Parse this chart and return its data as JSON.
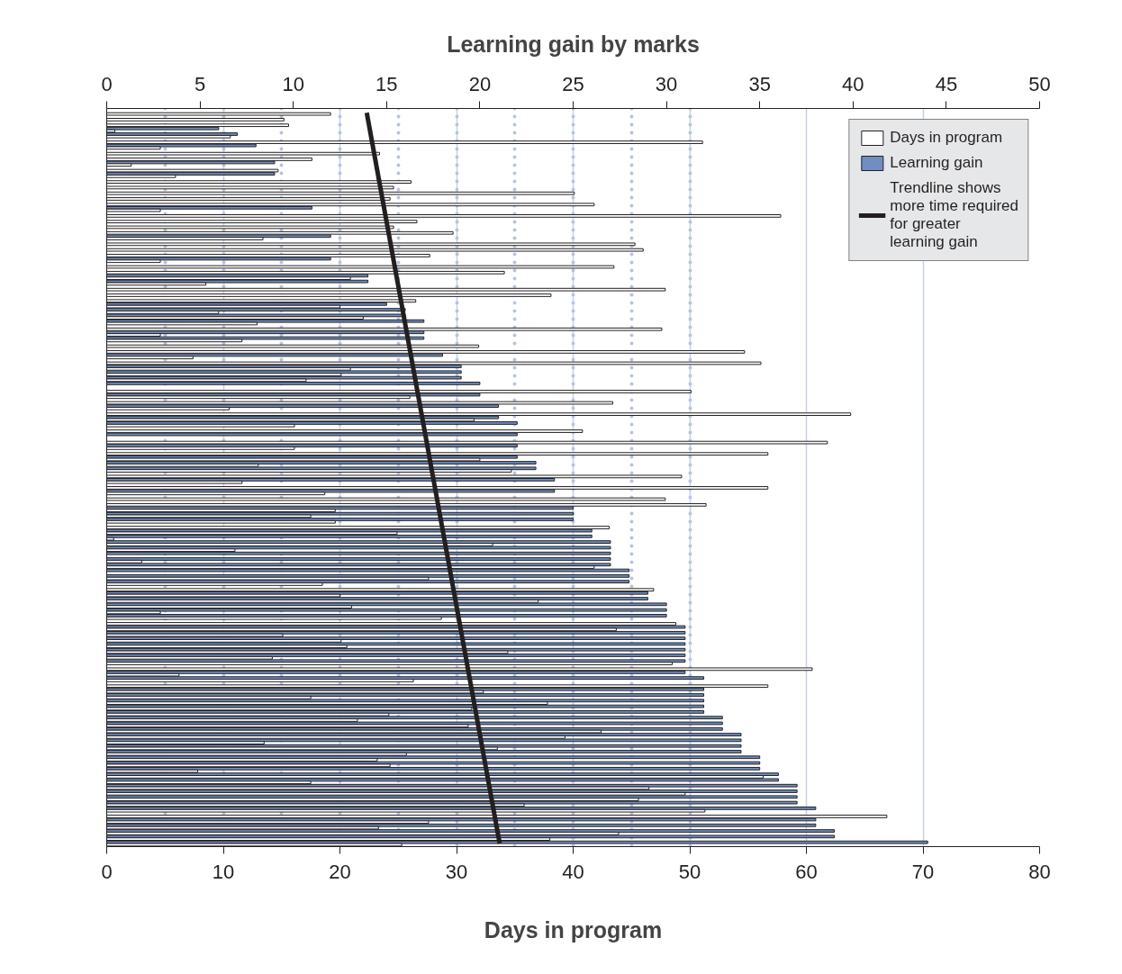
{
  "chart_data": {
    "type": "bar",
    "orientation": "horizontal",
    "xlabel": "Days in program",
    "x2label": "Learning gain by marks",
    "categories": [
      null,
      null,
      null,
      null,
      null,
      null,
      null,
      null,
      null,
      null,
      null,
      null,
      null,
      null,
      null,
      null,
      null,
      null,
      null,
      null,
      null,
      null,
      null,
      null,
      null,
      null,
      null,
      null,
      null,
      null,
      null,
      null,
      null,
      null,
      null,
      null,
      null,
      null,
      null,
      null,
      null,
      null,
      null,
      null,
      null,
      null,
      null,
      null,
      null,
      null,
      null,
      null,
      null,
      null,
      null,
      null,
      null,
      null,
      null,
      null,
      null,
      null,
      null,
      null,
      null,
      null,
      null,
      null,
      null,
      null,
      null,
      null,
      null,
      null,
      null,
      null,
      null,
      null,
      null,
      null,
      null,
      null,
      null,
      null,
      null,
      null,
      null,
      null,
      null,
      null,
      null,
      null,
      null,
      null,
      null,
      null,
      null,
      null,
      null,
      null,
      null,
      null,
      null,
      null,
      null,
      null,
      null,
      null,
      null,
      null,
      null,
      null,
      null,
      null,
      null,
      null,
      null,
      null,
      null,
      null,
      null,
      null,
      null,
      null,
      null,
      null,
      null,
      null,
      null,
      null
    ],
    "series": [
      {
        "name": "Learning gain",
        "color": "#6f8fc2",
        "axis": "x2",
        "values": [
          null,
          null,
          null,
          6,
          7,
          null,
          8,
          null,
          null,
          9,
          null,
          9,
          null,
          null,
          null,
          null,
          null,
          11,
          null,
          null,
          null,
          null,
          12,
          null,
          null,
          null,
          12,
          null,
          null,
          14,
          14,
          null,
          null,
          null,
          15,
          16,
          16,
          17,
          null,
          17,
          17,
          null,
          null,
          18,
          null,
          19,
          19,
          19,
          20,
          null,
          20,
          null,
          21,
          null,
          21,
          22,
          null,
          22,
          null,
          22,
          null,
          22,
          23,
          23,
          null,
          24,
          null,
          24,
          null,
          null,
          25,
          25,
          25,
          null,
          26,
          26,
          27,
          27,
          27,
          27,
          27,
          28,
          28,
          28,
          null,
          29,
          29,
          30,
          30,
          30,
          null,
          31,
          31,
          31,
          31,
          31,
          31,
          31,
          null,
          31,
          32,
          null,
          32,
          32,
          32,
          32,
          32,
          33,
          33,
          33,
          34,
          34,
          34,
          34,
          35,
          35,
          35,
          36,
          36,
          37,
          37,
          37,
          37,
          38,
          null,
          38,
          38,
          39,
          39,
          44
        ]
      },
      {
        "name": "Days in program",
        "color": "#ffffff",
        "values": [
          19.2,
          15.2,
          15.6,
          0.7,
          10.6,
          51.1,
          4.6,
          23.4,
          17.6,
          2.1,
          14.7,
          5.9,
          26.1,
          24.6,
          40.1,
          24.3,
          41.8,
          4.6,
          57.8,
          26.6,
          24.6,
          29.7,
          13.4,
          45.3,
          46.0,
          27.7,
          4.6,
          43.5,
          34.1,
          20.9,
          8.5,
          47.9,
          38.1,
          26.5,
          20.0,
          9.6,
          22.0,
          12.9,
          47.6,
          4.6,
          11.6,
          31.9,
          54.7,
          7.4,
          56.1,
          20.9,
          20.1,
          17.1,
          0,
          50.1,
          26.0,
          43.4,
          10.5,
          63.8,
          31.5,
          16.1,
          40.8,
          0,
          61.8,
          16.1,
          56.7,
          32.0,
          13.0,
          34.7,
          49.3,
          11.6,
          56.7,
          18.7,
          47.9,
          51.4,
          19.6,
          17.5,
          19.6,
          43.1,
          24.9,
          0.6,
          33.1,
          11.0,
          0,
          3.0,
          41.8,
          0,
          27.6,
          18.5,
          46.9,
          20.0,
          37.0,
          21.0,
          4.6,
          28.7,
          48.8,
          43.7,
          15.1,
          20.1,
          20.6,
          34.4,
          14.2,
          48.5,
          60.5,
          6.2,
          26.3,
          56.7,
          32.3,
          17.5,
          37.8,
          31.3,
          24.2,
          21.5,
          31.0,
          42.4,
          39.3,
          13.5,
          33.5,
          25.7,
          23.2,
          24.3,
          7.8,
          56.3,
          17.5,
          46.5,
          49.6,
          45.6,
          35.8,
          51.3,
          66.9,
          27.6,
          23.3,
          43.9,
          38.0,
          25.3
        ]
      },
      {
        "name": "Trendline shows more time required for greater learning gain",
        "type": "line",
        "color": "#231f20",
        "values": [
          22.3,
          null,
          null,
          null,
          null,
          null,
          null,
          null,
          null,
          null,
          null,
          null,
          null,
          null,
          null,
          null,
          null,
          null,
          null,
          null,
          null,
          null,
          null,
          null,
          null,
          null,
          null,
          null,
          null,
          null,
          null,
          null,
          null,
          null,
          null,
          null,
          null,
          null,
          null,
          null,
          null,
          null,
          null,
          null,
          null,
          null,
          null,
          null,
          null,
          null,
          null,
          null,
          null,
          null,
          null,
          null,
          null,
          null,
          null,
          null,
          null,
          null,
          null,
          null,
          null,
          null,
          null,
          null,
          null,
          null,
          null,
          null,
          null,
          null,
          null,
          null,
          null,
          null,
          null,
          null,
          null,
          null,
          null,
          null,
          null,
          null,
          null,
          null,
          null,
          null,
          null,
          null,
          null,
          null,
          null,
          null,
          null,
          null,
          null,
          null,
          null,
          null,
          null,
          null,
          null,
          null,
          null,
          null,
          null,
          null,
          null,
          null,
          null,
          null,
          null,
          null,
          null,
          null,
          null,
          null,
          null,
          null,
          null,
          null,
          null,
          null,
          null,
          null,
          null,
          33.7
        ]
      }
    ],
    "xlim": [
      0,
      80
    ],
    "xticks": [
      0,
      10,
      20,
      30,
      40,
      50,
      60,
      70,
      80
    ],
    "x2lim": [
      0,
      50
    ],
    "x2ticks": [
      0,
      5,
      10,
      15,
      20,
      25,
      30,
      35,
      40,
      45,
      50
    ],
    "grid": true,
    "legend": "top right"
  }
}
